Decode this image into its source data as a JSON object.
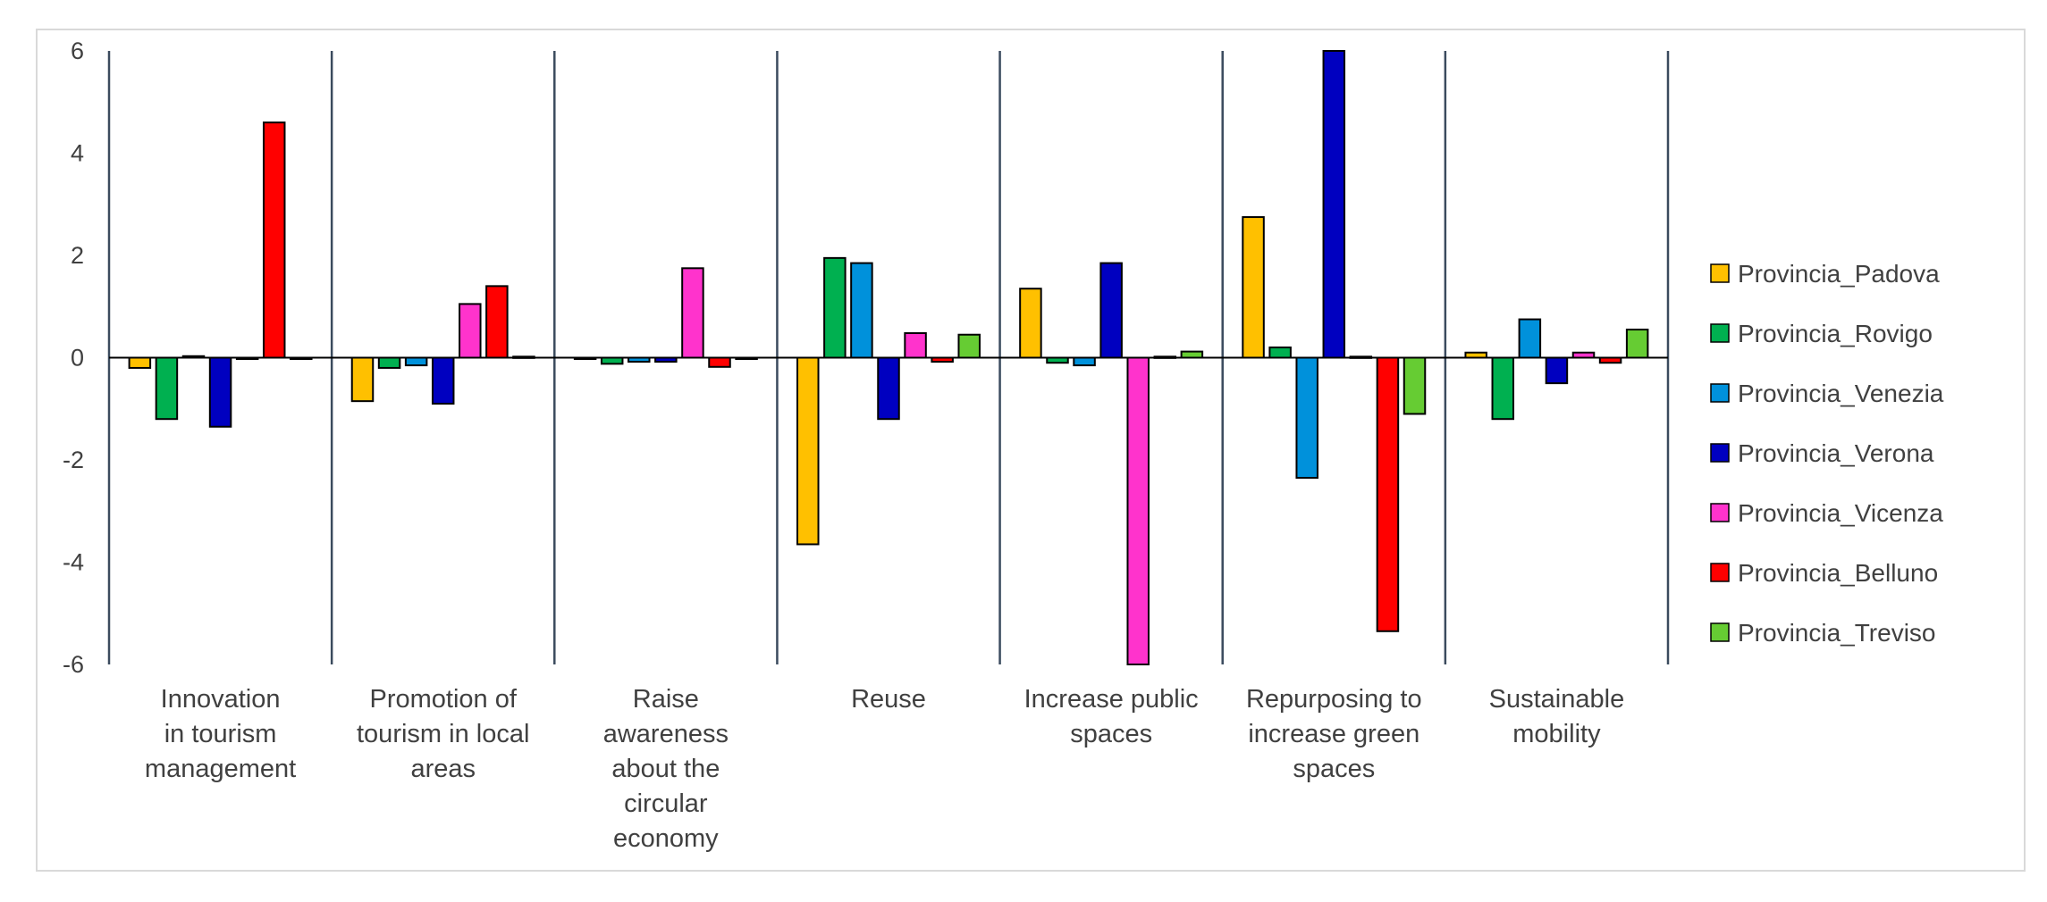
{
  "chart_data": {
    "type": "bar",
    "title": "",
    "xlabel": "",
    "ylabel": "",
    "ylim": [
      -6,
      6
    ],
    "yticks": [
      6,
      4,
      2,
      0,
      -2,
      -4,
      -6
    ],
    "grid": false,
    "legend_position": "right",
    "categories": [
      "Innovation in tourism management",
      "Promotion of tourism in local areas",
      "Raise awareness about the circular economy",
      "Reuse",
      "Increase public spaces",
      "Repurposing to increase green spaces",
      "Sustainable mobility"
    ],
    "category_label_lines": [
      [
        "Innovation",
        "in tourism",
        "management"
      ],
      [
        "Promotion of",
        "tourism in local",
        "areas"
      ],
      [
        "Raise",
        "awareness",
        "about the",
        "circular",
        "economy"
      ],
      [
        "Reuse"
      ],
      [
        "Increase    public",
        "spaces"
      ],
      [
        "Repurposing to",
        "increase green",
        "spaces"
      ],
      [
        "Sustainable",
        "mobility"
      ]
    ],
    "series": [
      {
        "name": "Provincia_Padova",
        "color": "#FFC000",
        "values": [
          -0.2,
          -0.85,
          0.0,
          -3.65,
          1.35,
          2.75,
          0.1
        ]
      },
      {
        "name": "Provincia_Rovigo",
        "color": "#00B050",
        "values": [
          -1.2,
          -0.2,
          -0.12,
          1.95,
          -0.1,
          0.2,
          -1.2
        ]
      },
      {
        "name": "Provincia_Venezia",
        "color": "#0091DB",
        "values": [
          0.03,
          -0.15,
          -0.08,
          1.85,
          -0.15,
          -2.35,
          0.75
        ]
      },
      {
        "name": "Provincia_Verona",
        "color": "#0000C0",
        "values": [
          -1.35,
          -0.9,
          -0.08,
          -1.2,
          1.85,
          6.0,
          -0.5
        ]
      },
      {
        "name": "Provincia_Vicenza",
        "color": "#FF33CC",
        "values": [
          -0.02,
          1.05,
          1.75,
          0.48,
          -6.0,
          0.02,
          0.1
        ]
      },
      {
        "name": "Provincia_Belluno",
        "color": "#FF0000",
        "values": [
          4.6,
          1.4,
          -0.18,
          -0.08,
          0.02,
          -5.35,
          -0.1
        ]
      },
      {
        "name": "Provincia_Treviso",
        "color": "#66CC33",
        "values": [
          -0.02,
          0.02,
          0.0,
          0.45,
          0.12,
          -1.1,
          0.55
        ]
      }
    ]
  }
}
